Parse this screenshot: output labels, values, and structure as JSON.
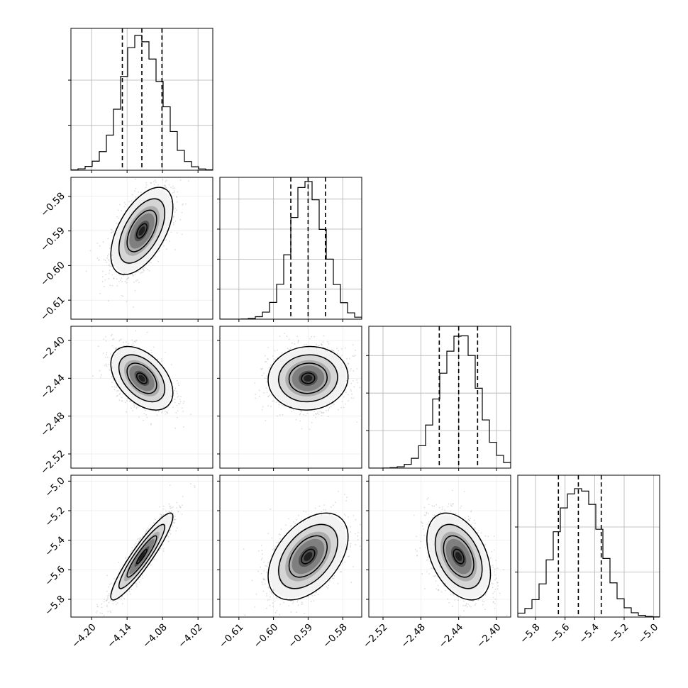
{
  "chart_data": {
    "type": "corner",
    "grid": true,
    "colors": {
      "axes": "#000000",
      "grid": "#b0b0b0",
      "histogram": "#000000",
      "scatter": "#9a9a9a",
      "contour": "#000000"
    },
    "parameters": [
      {
        "range": [
          -4.235,
          -3.995
        ],
        "ticks": [
          -4.2,
          -4.14,
          -4.08,
          -4.02
        ],
        "tick_labels": [
          "−4.20",
          "−4.14",
          "−4.08",
          "−4.02"
        ],
        "quantiles": [
          -4.148,
          -4.115,
          -4.081
        ],
        "hist_peak": 1800,
        "hist_yticks": [
          600,
          1200
        ]
      },
      {
        "range": [
          -0.6155,
          -0.5745
        ],
        "ticks": [
          -0.61,
          -0.6,
          -0.59,
          -0.58
        ],
        "tick_labels": [
          "−0.61",
          "−0.60",
          "−0.59",
          "−0.58"
        ],
        "quantiles": [
          -0.595,
          -0.59,
          -0.585
        ],
        "hist_peak": 1800,
        "hist_yticks": [
          400,
          800,
          1200,
          1600
        ]
      },
      {
        "range": [
          -2.535,
          -2.385
        ],
        "ticks": [
          -2.52,
          -2.48,
          -2.44,
          -2.4
        ],
        "tick_labels": [
          "−2.52",
          "−2.48",
          "−2.44",
          "−2.40"
        ],
        "quantiles": [
          -2.4605,
          -2.44,
          -2.42
        ],
        "hist_peak": 1800,
        "hist_yticks": [
          500,
          1000,
          1500
        ]
      },
      {
        "range": [
          -5.92,
          -4.96
        ],
        "ticks": [
          -5.8,
          -5.6,
          -5.4,
          -5.2,
          -5.0
        ],
        "tick_labels": [
          "−5.8",
          "−5.6",
          "−5.4",
          "−5.2",
          "−5.0"
        ],
        "quantiles": [
          -5.645,
          -5.51,
          -5.355
        ],
        "hist_peak": 1800,
        "hist_yticks": [
          600,
          1200
        ]
      }
    ],
    "pairs": [
      {
        "row": 1,
        "col": 0,
        "center": [
          -4.115,
          -0.59
        ],
        "sigma": [
          0.025,
          0.006
        ],
        "rho": 0.55
      },
      {
        "row": 2,
        "col": 0,
        "center": [
          -4.115,
          -2.44
        ],
        "sigma": [
          0.025,
          0.016
        ],
        "rho": -0.45
      },
      {
        "row": 2,
        "col": 1,
        "center": [
          -0.59,
          -2.44
        ],
        "sigma": [
          0.0055,
          0.016
        ],
        "rho": 0.05
      },
      {
        "row": 3,
        "col": 0,
        "center": [
          -4.115,
          -5.51
        ],
        "sigma": [
          0.025,
          0.14
        ],
        "rho": 0.92
      },
      {
        "row": 3,
        "col": 1,
        "center": [
          -0.59,
          -5.51
        ],
        "sigma": [
          0.0055,
          0.14
        ],
        "rho": 0.45
      },
      {
        "row": 3,
        "col": 2,
        "center": [
          -2.44,
          -5.51
        ],
        "sigma": [
          0.016,
          0.14
        ],
        "rho": -0.4
      }
    ]
  }
}
